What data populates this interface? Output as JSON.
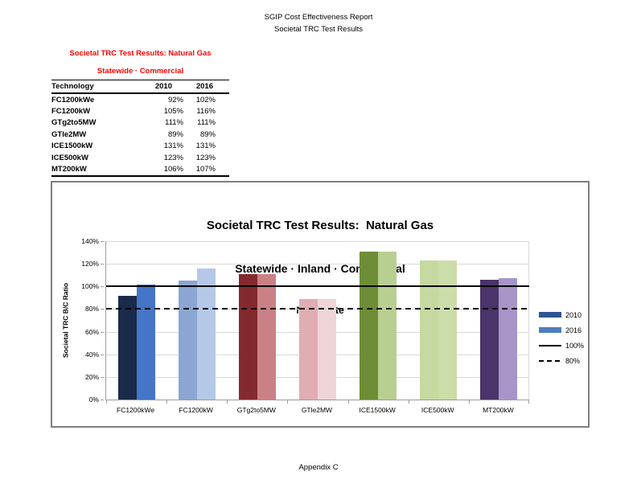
{
  "page": {
    "header": [
      "SGIP Cost Effectiveness Report",
      "Societal TRC Test Results"
    ],
    "footer": "Appendix C"
  },
  "summary_table": {
    "title": "Societal TRC Test Results: Natural Gas",
    "subtitle": "Statewide · Commercial",
    "accent_color": "#FF0000",
    "columns": [
      "Technology",
      "2010",
      "2016"
    ],
    "rows": [
      [
        "FC1200kWe",
        "92%",
        "102%"
      ],
      [
        "FC1200kW",
        "105%",
        "116%"
      ],
      [
        "GTg2to5MW",
        "111%",
        "111%"
      ],
      [
        "GTle2MW",
        "89%",
        "89%"
      ],
      [
        "ICE1500kW",
        "131%",
        "131%"
      ],
      [
        "ICE500kW",
        "123%",
        "123%"
      ],
      [
        "MT200kW",
        "106%",
        "107%"
      ]
    ]
  },
  "chart_data": {
    "type": "bar",
    "title": "Societal TRC Test Results:  Natural Gas",
    "subtitle": "Statewide · Inland · Commercial",
    "subtitle2": "No Rebate",
    "ylabel": "Societal TRC B/C Ratio",
    "ylim": [
      0,
      140
    ],
    "ytick_step": 20,
    "ytick_labels": [
      "0%",
      "20%",
      "40%",
      "60%",
      "80%",
      "100%",
      "120%",
      "140%"
    ],
    "grid": true,
    "legend_position": "right",
    "categories": [
      "FC1200kWe",
      "FC1200kW",
      "GTg2to5MW",
      "GTle2MW",
      "ICE1500kW",
      "ICE500kW",
      "MT200kW"
    ],
    "series": [
      {
        "name": "2010",
        "values": [
          92,
          105,
          111,
          89,
          131,
          123,
          106
        ],
        "legend_color": "#2e5491",
        "bar_colors": [
          "#1a2a4a",
          "#8ba6d2",
          "#832a2e",
          "#dfadb2",
          "#6d8d36",
          "#c6d9a0",
          "#4a3469"
        ]
      },
      {
        "name": "2016",
        "values": [
          102,
          116,
          111,
          89,
          131,
          123,
          107
        ],
        "legend_color": "#4c7ec0",
        "bar_colors": [
          "#4575c7",
          "#b5c8e8",
          "#ca8185",
          "#efd5d8",
          "#b9cf91",
          "#cbdda9",
          "#a795c8"
        ]
      }
    ],
    "patterned_bars": [
      {
        "series": "2010",
        "category": "ICE500kW",
        "pattern": "crosshatch"
      }
    ],
    "reference_lines": [
      {
        "label": "100%",
        "value": 100,
        "style": "solid",
        "color": "#000000"
      },
      {
        "label": "80%",
        "value": 80,
        "style": "dashed",
        "color": "#000000"
      }
    ]
  }
}
